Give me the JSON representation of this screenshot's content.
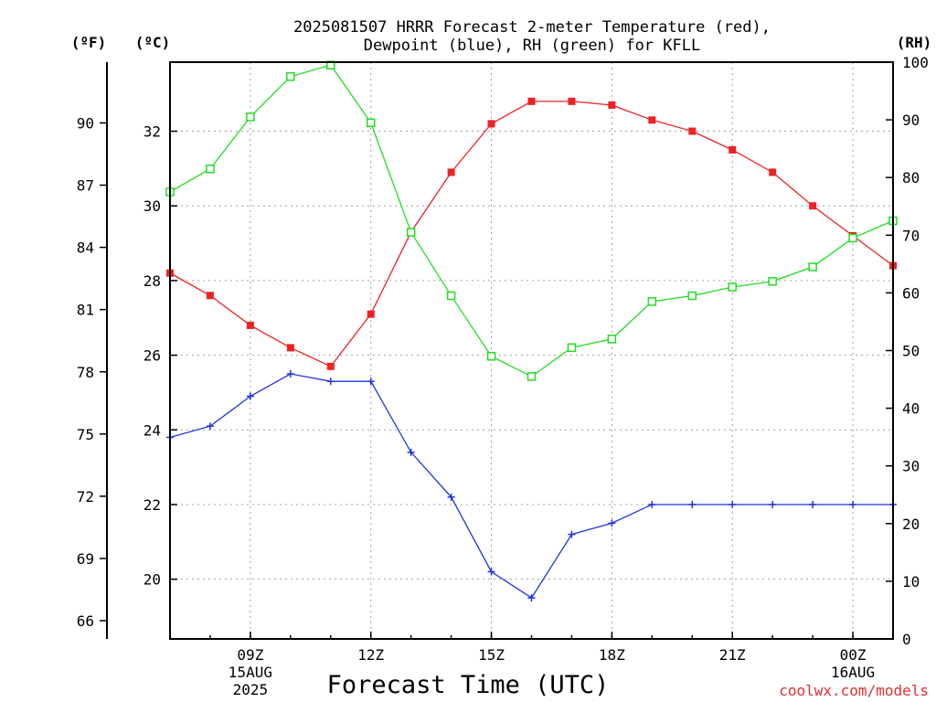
{
  "chart_data": {
    "type": "line",
    "title_line1": "2025081507 HRRR Forecast 2-meter Temperature (red),",
    "title_line2": "Dewpoint (blue), RH (green) for KFLL",
    "xlabel": "Forecast Time (UTC)",
    "credit": "coolwx.com/models",
    "unit_f": "(ºF)",
    "unit_c": "(ºC)",
    "unit_rh": "(RH)",
    "x_hours": [
      7,
      8,
      9,
      10,
      11,
      12,
      13,
      14,
      15,
      16,
      17,
      18,
      19,
      20,
      21,
      22,
      23,
      24,
      25
    ],
    "xlim_hours": [
      7,
      25
    ],
    "x_ticks": [
      {
        "hour": 9,
        "label": "09Z",
        "sub1": "15AUG",
        "sub2": "2025"
      },
      {
        "hour": 12,
        "label": "12Z",
        "sub1": "",
        "sub2": ""
      },
      {
        "hour": 15,
        "label": "15Z",
        "sub1": "",
        "sub2": ""
      },
      {
        "hour": 18,
        "label": "18Z",
        "sub1": "",
        "sub2": ""
      },
      {
        "hour": 21,
        "label": "21Z",
        "sub1": "",
        "sub2": ""
      },
      {
        "hour": 24,
        "label": "00Z",
        "sub1": "16AUG",
        "sub2": ""
      }
    ],
    "ylim_c": [
      18.4,
      33.85
    ],
    "c_ticks": [
      20,
      22,
      24,
      26,
      28,
      30,
      32
    ],
    "f_ticks": [
      66,
      69,
      72,
      75,
      78,
      81,
      84,
      87,
      90
    ],
    "rh_ticks": [
      0,
      10,
      20,
      30,
      40,
      50,
      60,
      70,
      80,
      90,
      100
    ],
    "ylim_rh": [
      0,
      100
    ],
    "grid": true,
    "series": [
      {
        "name": "Temperature",
        "color": "#ee2222",
        "marker": "square-filled",
        "axis": "c",
        "values": [
          28.2,
          27.6,
          26.8,
          26.2,
          25.7,
          27.1,
          29.3,
          30.9,
          32.2,
          32.8,
          32.8,
          32.7,
          32.3,
          32.0,
          31.5,
          30.9,
          30.0,
          29.2,
          28.4
        ]
      },
      {
        "name": "Dewpoint",
        "color": "#2233dd",
        "marker": "plus",
        "axis": "c",
        "values": [
          23.8,
          24.1,
          24.9,
          25.5,
          25.3,
          25.3,
          23.4,
          22.2,
          20.2,
          19.5,
          21.2,
          21.5,
          22.0,
          22.0,
          22.0,
          22.0,
          22.0,
          22.0,
          22.0
        ]
      },
      {
        "name": "RH",
        "color": "#22dd22",
        "marker": "square-open",
        "axis": "rh",
        "values": [
          77.5,
          81.5,
          90.5,
          97.5,
          99.5,
          89.5,
          70.5,
          59.5,
          49,
          45.5,
          50.5,
          52,
          58.5,
          59.5,
          61,
          62,
          64.5,
          69.5,
          72.5
        ]
      }
    ]
  }
}
